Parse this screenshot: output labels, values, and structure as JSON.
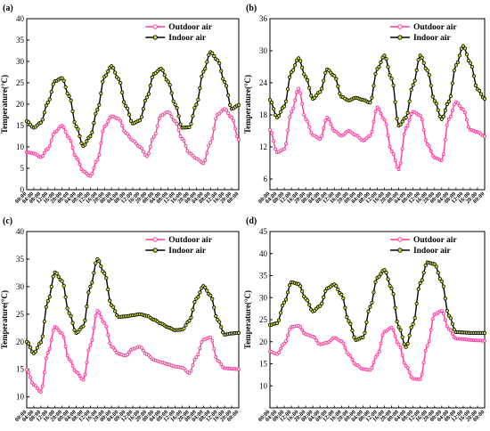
{
  "panels": [
    {
      "label": "(a)",
      "ylabel": "Temperature(°C)",
      "legend": [
        "Outdoor air",
        "Indoor air"
      ]
    },
    {
      "label": "(b)",
      "ylabel": "Temperature(°C)",
      "legend": [
        "Outdoor air",
        "Indoor air"
      ]
    },
    {
      "label": "(c)",
      "ylabel": "Temperature(°C)",
      "legend": [
        "Outdoor air",
        "Indoor air"
      ]
    },
    {
      "label": "(d)",
      "ylabel": "Temperature(°C)",
      "legend": [
        "Outdoor air",
        "Indoor air"
      ]
    }
  ],
  "chart_data": [
    {
      "type": "line",
      "title": "",
      "xlabel": "",
      "ylabel": "Temperature(°C)",
      "ylim": [
        0,
        40
      ],
      "yticks": [
        0,
        5,
        10,
        15,
        20,
        25,
        30,
        35,
        40
      ],
      "x": [
        "00:00",
        "04:00",
        "08:00",
        "12:00",
        "16:00",
        "20:00",
        "00:00",
        "04:00",
        "08:00",
        "12:00",
        "16:00",
        "20:00",
        "00:00",
        "04:00",
        "08:00",
        "12:00",
        "16:00",
        "20:00",
        "00:00",
        "04:00",
        "08:00",
        "12:00",
        "16:00",
        "20:00",
        "00:00",
        "04:00",
        "08:00",
        "12:00",
        "16:00",
        "20:00",
        "00:00"
      ],
      "series": [
        {
          "name": "Outdoor air",
          "color": "#ff3d9a",
          "values": [
            8.8,
            8.5,
            7.6,
            9.6,
            13.5,
            15.0,
            12.1,
            7.5,
            4.3,
            3.2,
            7.0,
            14.8,
            17.2,
            16.6,
            13.3,
            11.5,
            10.0,
            7.8,
            12.4,
            17.4,
            18.2,
            16.0,
            11.9,
            8.6,
            7.3,
            6.2,
            11.0,
            17.6,
            18.9,
            16.9,
            11.7
          ]
        },
        {
          "name": "Indoor air",
          "color": "#000000",
          "marker": "#d4e02a",
          "values": [
            16.0,
            14.5,
            15.7,
            20.4,
            25.4,
            26.1,
            21.9,
            14.8,
            10.2,
            12.5,
            18.7,
            26.4,
            28.9,
            25.9,
            19.6,
            15.5,
            16.2,
            21.6,
            27.1,
            28.3,
            25.3,
            19.9,
            14.5,
            14.6,
            19.9,
            27.6,
            32.2,
            30.3,
            25.2,
            18.9,
            19.8
          ]
        }
      ]
    },
    {
      "type": "line",
      "title": "",
      "xlabel": "",
      "ylabel": "Temperature(°C)",
      "ylim": [
        4,
        36
      ],
      "yticks": [
        6,
        12,
        18,
        24,
        30,
        36
      ],
      "x": [
        "00:00",
        "04:00",
        "08:00",
        "12:00",
        "16:00",
        "20:00",
        "00:00",
        "04:00",
        "08:00",
        "12:00",
        "16:00",
        "20:00",
        "00:00",
        "04:00",
        "08:00",
        "12:00",
        "16:00",
        "20:00",
        "00:00",
        "04:00",
        "08:00",
        "12:00",
        "16:00",
        "20:00",
        "00:00",
        "04:00",
        "08:00",
        "12:00",
        "16:00",
        "20:00",
        "00:00"
      ],
      "series": [
        {
          "name": "Outdoor air",
          "color": "#ff3d9a",
          "values": [
            15.2,
            11.0,
            11.6,
            18.6,
            22.9,
            17.2,
            14.2,
            13.5,
            17.5,
            15.0,
            14.1,
            15.0,
            14.2,
            13.2,
            14.1,
            19.4,
            17.1,
            11.2,
            7.8,
            15.5,
            18.6,
            17.9,
            12.5,
            10.0,
            9.5,
            17.2,
            20.4,
            19.0,
            15.2,
            14.8,
            14.0
          ]
        },
        {
          "name": "Indoor air",
          "color": "#000000",
          "marker": "#d4e02a",
          "values": [
            20.8,
            17.5,
            19.6,
            26.0,
            28.6,
            25.1,
            21.0,
            22.3,
            26.5,
            25.3,
            21.4,
            20.7,
            21.2,
            20.8,
            20.3,
            26.6,
            29.1,
            24.8,
            16.0,
            17.5,
            23.6,
            29.1,
            26.3,
            20.6,
            17.2,
            20.5,
            27.3,
            30.9,
            27.7,
            22.8,
            21.0
          ]
        }
      ]
    },
    {
      "type": "line",
      "title": "",
      "xlabel": "",
      "ylabel": "Temperature(°C)",
      "ylim": [
        8,
        40
      ],
      "yticks": [
        10,
        15,
        20,
        25,
        30,
        35,
        40
      ],
      "x": [
        "00:00",
        "04:00",
        "08:00",
        "12:00",
        "16:00",
        "20:00",
        "00:00",
        "04:00",
        "08:00",
        "12:00",
        "16:00",
        "20:00",
        "00:00",
        "04:00",
        "08:00",
        "12:00",
        "16:00",
        "20:00",
        "00:00",
        "04:00",
        "08:00",
        "12:00",
        "16:00",
        "20:00",
        "00:00",
        "04:00",
        "08:00",
        "12:00",
        "16:00",
        "20:00",
        "00:00"
      ],
      "series": [
        {
          "name": "Outdoor air",
          "color": "#ff3d9a",
          "values": [
            14.9,
            12.2,
            10.9,
            18.0,
            22.7,
            21.5,
            16.8,
            14.5,
            13.1,
            19.4,
            25.6,
            23.4,
            19.1,
            17.8,
            17.5,
            18.7,
            19.1,
            17.7,
            16.7,
            16.3,
            15.9,
            15.5,
            15.3,
            14.3,
            17.2,
            20.4,
            20.8,
            16.6,
            15.2,
            15.1,
            15.0
          ]
        },
        {
          "name": "Indoor air",
          "color": "#000000",
          "marker": "#d4e02a",
          "values": [
            20.0,
            17.9,
            19.9,
            27.4,
            32.6,
            31.0,
            25.2,
            21.6,
            22.8,
            30.0,
            35.0,
            32.4,
            26.6,
            24.5,
            24.6,
            24.8,
            25.0,
            24.7,
            24.0,
            23.3,
            22.6,
            22.1,
            22.2,
            23.8,
            27.8,
            30.1,
            28.4,
            24.0,
            21.3,
            21.5,
            21.6
          ]
        }
      ]
    },
    {
      "type": "line",
      "title": "",
      "xlabel": "",
      "ylabel": "Temperature(°C)",
      "ylim": [
        5,
        45
      ],
      "yticks": [
        10,
        15,
        20,
        25,
        30,
        35,
        40,
        45
      ],
      "x": [
        "00:00",
        "04:00",
        "08:00",
        "12:00",
        "16:00",
        "20:00",
        "00:00",
        "04:00",
        "08:00",
        "12:00",
        "16:00",
        "20:00",
        "00:00",
        "04:00",
        "08:00",
        "12:00",
        "16:00",
        "20:00",
        "00:00",
        "04:00",
        "08:00",
        "12:00",
        "16:00",
        "20:00",
        "00:00",
        "04:00",
        "08:00",
        "12:00",
        "16:00",
        "20:00",
        "00:00"
      ],
      "series": [
        {
          "name": "Outdoor air",
          "color": "#ff3d9a",
          "values": [
            17.8,
            17.2,
            19.6,
            23.4,
            23.6,
            21.7,
            21.2,
            19.4,
            19.8,
            20.9,
            20.1,
            17.1,
            14.8,
            13.8,
            13.6,
            17.0,
            22.3,
            23.2,
            19.4,
            14.5,
            11.6,
            11.5,
            19.1,
            26.2,
            27.0,
            22.9,
            20.7,
            20.6,
            20.4,
            20.3,
            20.2
          ]
        },
        {
          "name": "Indoor air",
          "color": "#000000",
          "marker": "#d4e02a",
          "values": [
            23.8,
            24.2,
            28.9,
            33.5,
            33.1,
            29.8,
            26.9,
            28.1,
            32.1,
            33.0,
            30.7,
            24.7,
            20.4,
            21.0,
            27.9,
            34.5,
            36.3,
            32.1,
            23.3,
            18.8,
            24.0,
            33.3,
            38.0,
            37.6,
            33.7,
            25.9,
            22.2,
            22.1,
            22.0,
            22.0,
            22.0
          ]
        }
      ]
    }
  ]
}
